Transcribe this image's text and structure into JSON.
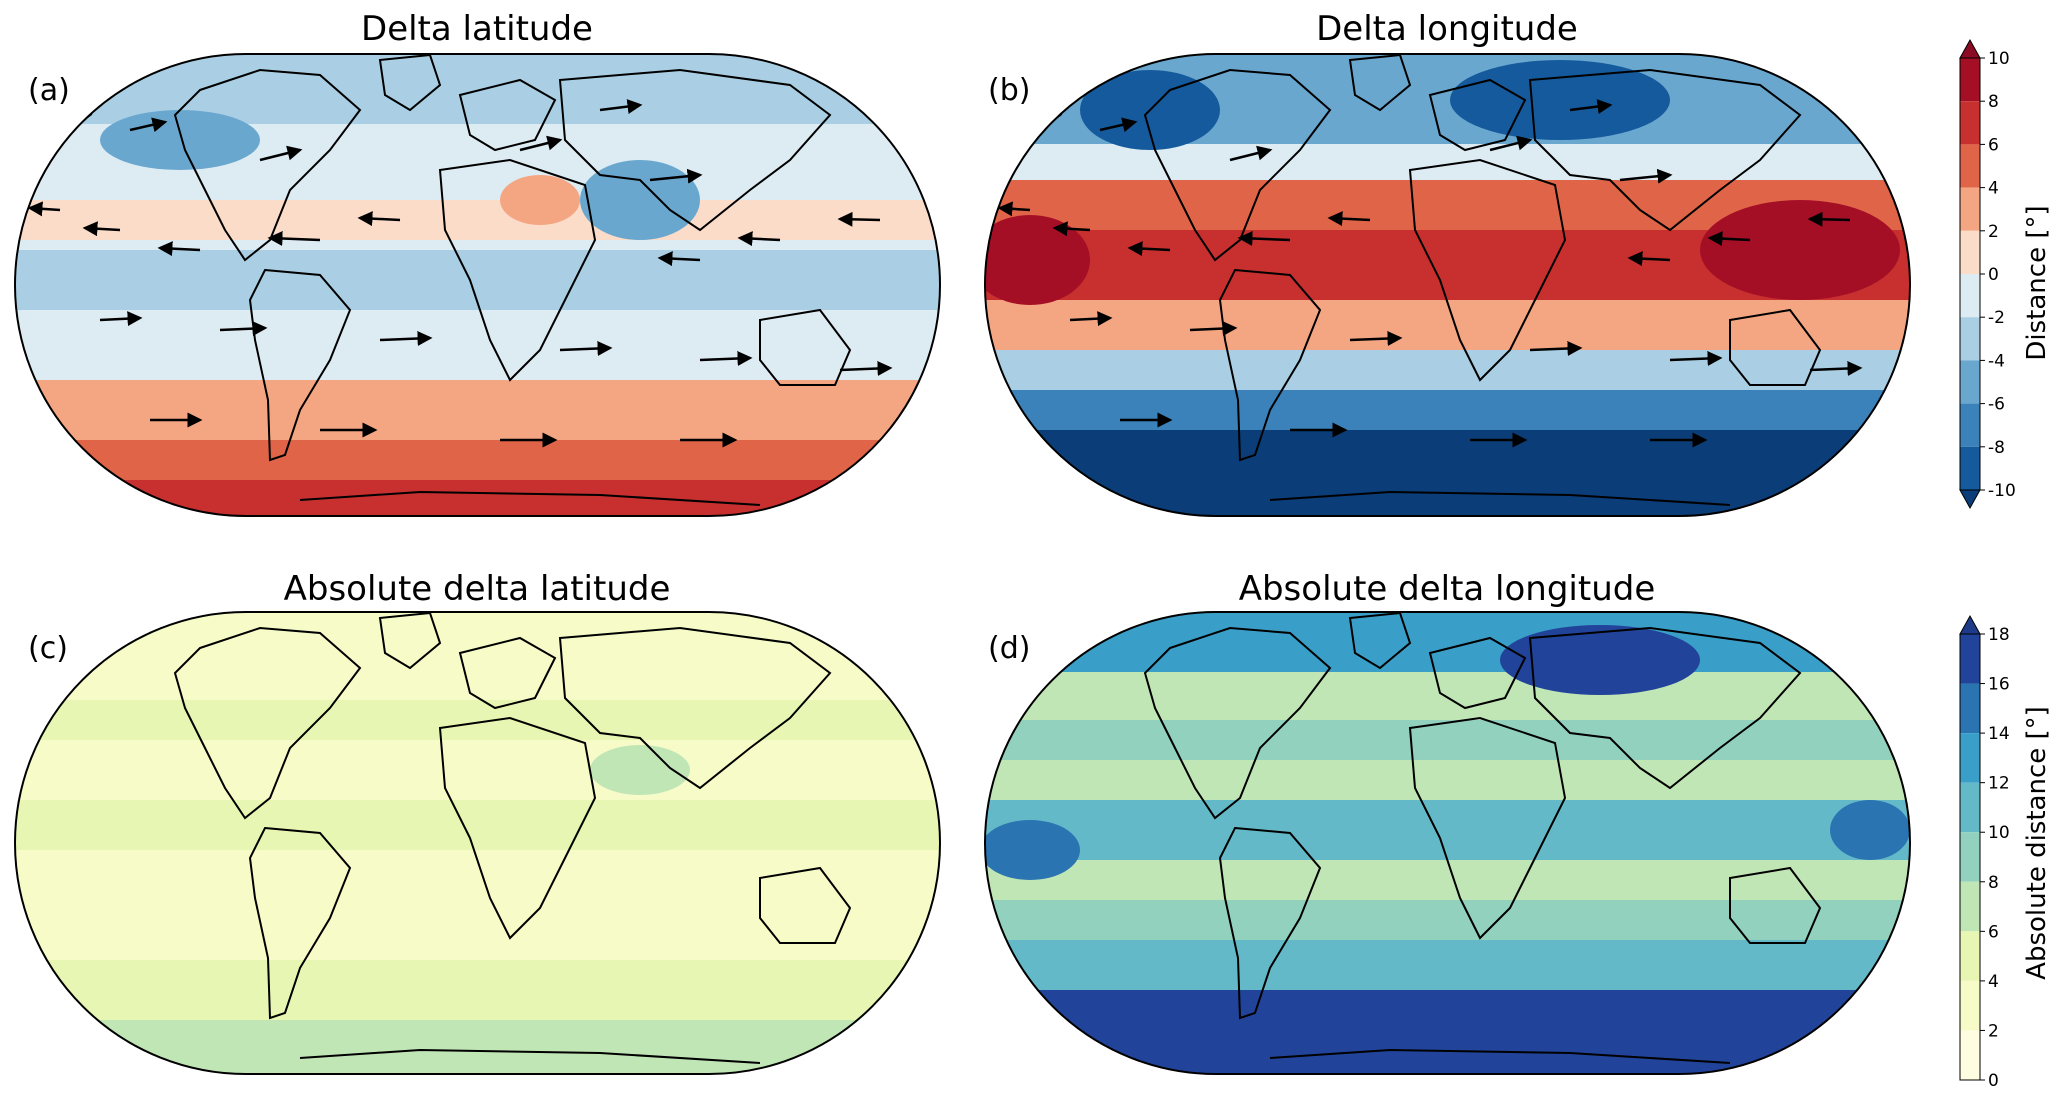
{
  "panels": [
    {
      "id": "a",
      "label": "(a)",
      "title": "Delta latitude"
    },
    {
      "id": "b",
      "label": "(b)",
      "title": "Delta longitude"
    },
    {
      "id": "c",
      "label": "(c)",
      "title": "Absolute delta latitude"
    },
    {
      "id": "d",
      "label": "(d)",
      "title": "Absolute delta longitude"
    }
  ],
  "colorbars": {
    "top": {
      "label": "Distance [°]",
      "ticks": [
        "10",
        "8",
        "6",
        "4",
        "2",
        "0",
        "-2",
        "-4",
        "-6",
        "-8",
        "-10"
      ],
      "colors": [
        "#a50f26",
        "#c7302f",
        "#e06448",
        "#f4a683",
        "#fbdcc9",
        "#ddebf3",
        "#aacfe4",
        "#6aa7cf",
        "#3b81ba",
        "#155a9c"
      ],
      "extend_top": "#8b0a24",
      "extend_bottom": "#0b3d78"
    },
    "bottom": {
      "label": "Absolute distance [°]",
      "ticks": [
        "18",
        "16",
        "14",
        "12",
        "10",
        "8",
        "6",
        "4",
        "2",
        "0"
      ],
      "colors": [
        "#21449a",
        "#2a74b2",
        "#3a9fc8",
        "#64b9c8",
        "#92d1bd",
        "#c1e6b6",
        "#e8f6b3",
        "#f6fbc8",
        "#fffde1"
      ],
      "extend_top": "#1d3b88"
    }
  }
}
